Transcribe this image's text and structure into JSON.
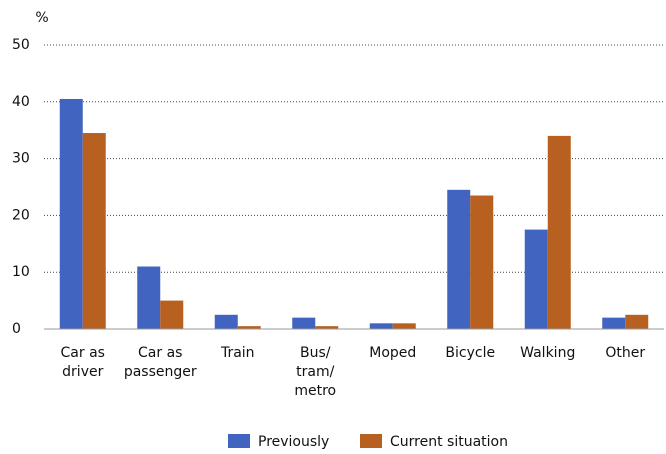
{
  "chart_data": {
    "type": "bar",
    "y_unit": "%",
    "categories": [
      "Car as\ndriver",
      "Car as\npassenger",
      "Train",
      "Bus/\ntram/\nmetro",
      "Moped",
      "Bicycle",
      "Walking",
      "Other"
    ],
    "series": [
      {
        "name": "Previously",
        "color": "#4064c0",
        "values": [
          40.5,
          11,
          2.5,
          2,
          1,
          24.5,
          17.5,
          2
        ]
      },
      {
        "name": "Current situation",
        "color": "#b8601f",
        "values": [
          34.5,
          5,
          0.5,
          0.5,
          1,
          23.5,
          34,
          2.5
        ]
      }
    ],
    "ylim": [
      0,
      50
    ],
    "yticks": [
      0,
      10,
      20,
      30,
      40,
      50
    ],
    "grid": true,
    "legend": "bottom"
  }
}
